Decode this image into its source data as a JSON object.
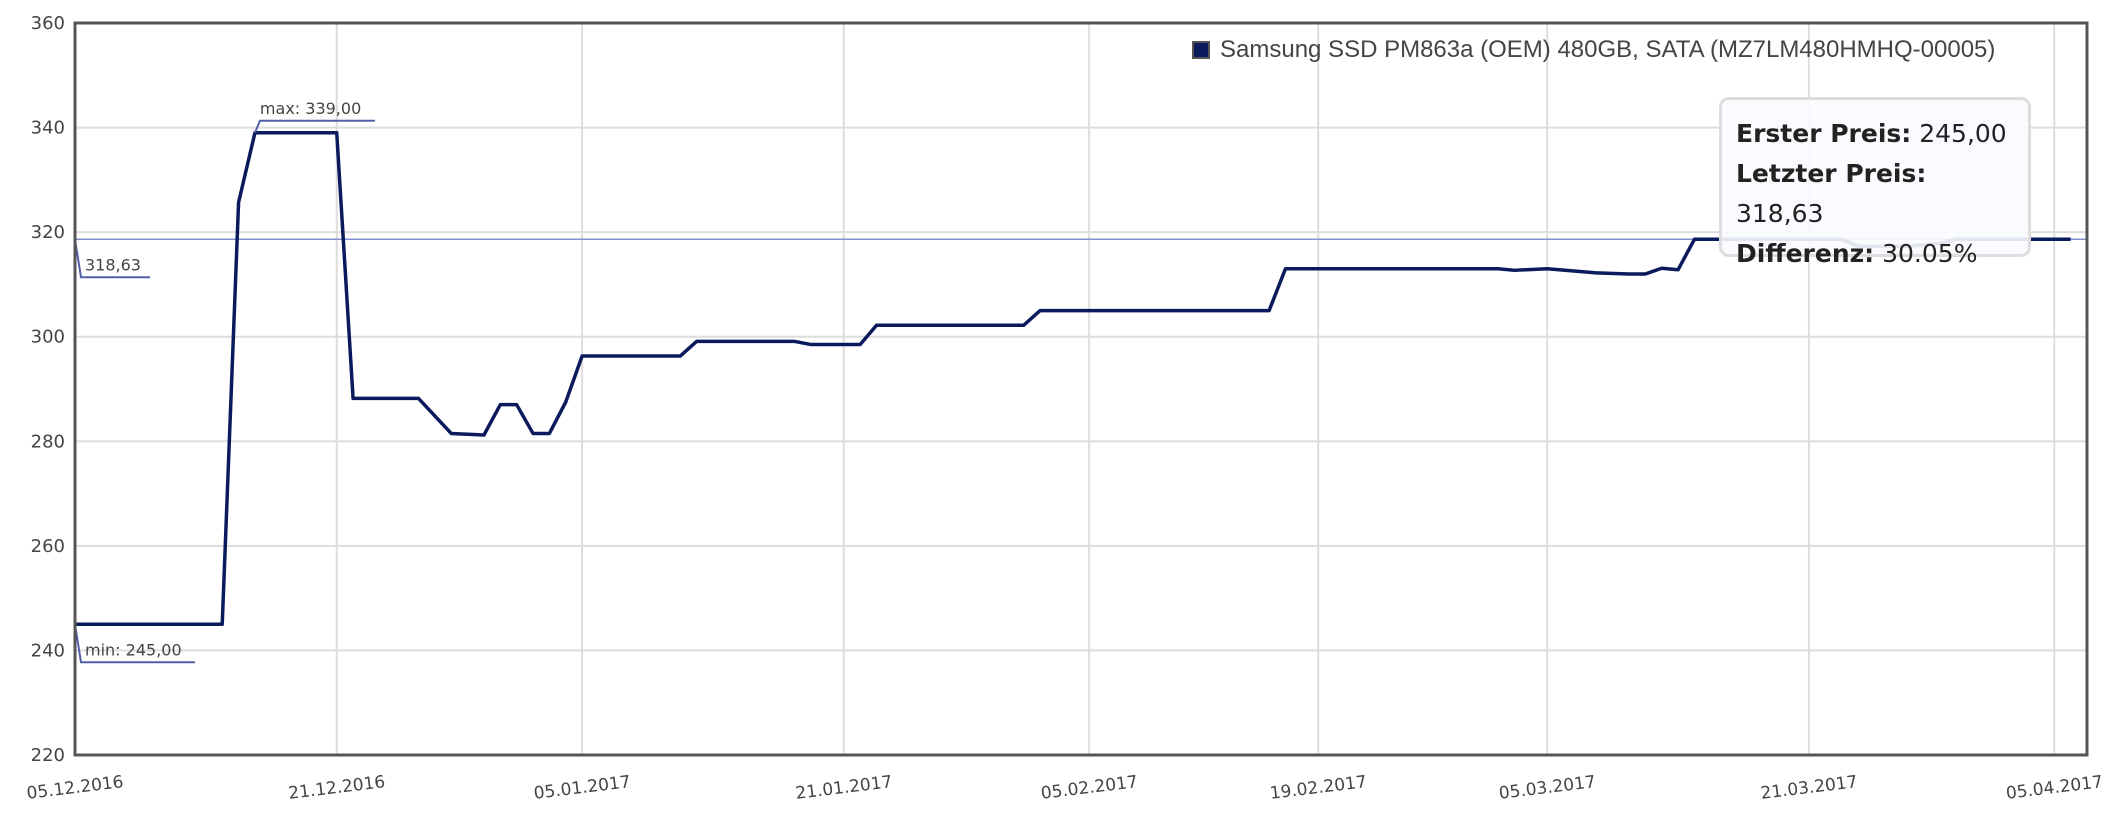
{
  "chart_data": {
    "type": "line",
    "title": "",
    "xlabel": "",
    "ylabel": "",
    "ylim": [
      220,
      360
    ],
    "yticks": [
      "220",
      "240",
      "260",
      "280",
      "300",
      "320",
      "340",
      "360"
    ],
    "xlim": [
      "2016-12-05",
      "2017-04-07"
    ],
    "xticks": [
      {
        "date": "2016-12-05",
        "label": "05.12.2016"
      },
      {
        "date": "2016-12-21",
        "label": "21.12.2016"
      },
      {
        "date": "2017-01-05",
        "label": "05.01.2017"
      },
      {
        "date": "2017-01-21",
        "label": "21.01.2017"
      },
      {
        "date": "2017-02-05",
        "label": "05.02.2017"
      },
      {
        "date": "2017-02-19",
        "label": "19.02.2017"
      },
      {
        "date": "2017-03-05",
        "label": "05.03.2017"
      },
      {
        "date": "2017-03-21",
        "label": "21.03.2017"
      },
      {
        "date": "2017-04-05",
        "label": "05.04.2017"
      }
    ],
    "grid": true,
    "legend_position": "top-right",
    "series": [
      {
        "name": "Samsung SSD PM863a (OEM) 480GB, SATA (MZ7LM480HMHQ-00005)",
        "color": "#0a1a5c",
        "x": [
          "2016-12-05",
          "2016-12-14",
          "2016-12-15",
          "2016-12-16",
          "2016-12-21",
          "2016-12-22",
          "2016-12-26",
          "2016-12-28",
          "2016-12-30",
          "2016-12-31",
          "2017-01-01",
          "2017-01-02",
          "2017-01-03",
          "2017-01-04",
          "2017-01-05",
          "2017-01-11",
          "2017-01-12",
          "2017-01-18",
          "2017-01-19",
          "2017-01-22",
          "2017-01-23",
          "2017-02-01",
          "2017-02-02",
          "2017-02-16",
          "2017-02-17",
          "2017-03-02",
          "2017-03-03",
          "2017-03-05",
          "2017-03-08",
          "2017-03-10",
          "2017-03-11",
          "2017-03-12",
          "2017-03-13",
          "2017-03-14",
          "2017-03-23",
          "2017-03-24",
          "2017-03-27",
          "2017-03-29",
          "2017-03-30",
          "2017-04-06"
        ],
        "y": [
          245,
          245,
          325.7,
          339,
          339,
          288.2,
          288.2,
          281.5,
          281.2,
          287,
          287,
          281.5,
          281.5,
          287.5,
          296.3,
          296.3,
          299.1,
          299.1,
          298.5,
          298.5,
          302.2,
          302.2,
          305,
          305,
          313,
          313,
          312.7,
          313,
          312.2,
          312,
          312,
          313.1,
          312.8,
          318.63,
          318.63,
          317.3,
          317.3,
          317.8,
          318.63,
          318.63
        ]
      }
    ],
    "reference_line": {
      "value": 318.63,
      "label": "318,63",
      "color": "#8090d0"
    },
    "annotations": {
      "max": {
        "date": "2016-12-16",
        "value": 339,
        "label": "max: 339,00"
      },
      "min": {
        "date": "2016-12-05",
        "value": 245,
        "label": "min: 245,00"
      }
    }
  },
  "legend": {
    "label": "Samsung SSD PM863a (OEM) 480GB, SATA (MZ7LM480HMHQ-00005)",
    "color": "#0a1a5c"
  },
  "tooltip": {
    "first_label": "Erster Preis:",
    "first_value": "245,00",
    "last_label": "Letzter Preis:",
    "last_value": "318,63",
    "diff_label": "Differenz:",
    "diff_value": "30.05%"
  }
}
